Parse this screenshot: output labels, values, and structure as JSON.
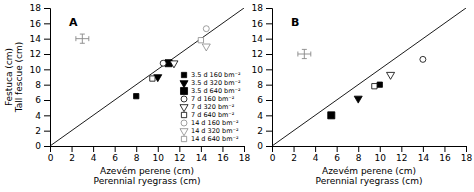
{
  "chart_data": [
    {
      "type": "scatter",
      "title": "A",
      "xlabel": "Azevém perene (cm)\nPerennial ryegrass (cm)",
      "ylabel": "Festuca (cm)\nTall fescue (cm)",
      "xlim": [
        0,
        18
      ],
      "ylim": [
        0,
        18
      ],
      "xticks": [
        0,
        2,
        4,
        6,
        8,
        10,
        12,
        14,
        16,
        18
      ],
      "yticks": [
        0,
        2,
        4,
        6,
        8,
        10,
        12,
        14,
        16,
        18
      ],
      "legend": "lower right",
      "identity_line": {
        "x": [
          0,
          18
        ],
        "values": [
          0,
          18
        ],
        "color": "black"
      },
      "series": [
        {
          "name": "3.5 d 160 bm⁻²",
          "x": [
            8.0
          ],
          "values": [
            6.5
          ],
          "marker": "square",
          "color": "black"
        },
        {
          "name": "3.5 d 320 bm⁻²",
          "x": [
            10.0
          ],
          "values": [
            9.0
          ],
          "marker": "triangle-down",
          "color": "black"
        },
        {
          "name": "3.5 d 640 bm⁻²",
          "x": [
            11.0
          ],
          "values": [
            10.8
          ],
          "marker": "large-square",
          "color": "black"
        },
        {
          "name": "7 d 160 bm⁻²",
          "x": [
            10.5
          ],
          "values": [
            10.8
          ],
          "marker": "open-circle",
          "color": "black"
        },
        {
          "name": "7 d 320 bm⁻²",
          "x": [
            11.5
          ],
          "values": [
            10.8
          ],
          "marker": "open-triangle-down",
          "color": "black"
        },
        {
          "name": "7 d 640 bm⁻²",
          "x": [
            9.5
          ],
          "values": [
            8.8
          ],
          "marker": "open-square",
          "color": "black"
        },
        {
          "name": "14 d 160 bm⁻²",
          "x": [
            14.5
          ],
          "values": [
            15.3
          ],
          "marker": "open-circle",
          "color": "#888888"
        },
        {
          "name": "14 d 320 bm⁻²",
          "x": [
            14.5
          ],
          "values": [
            13.0
          ],
          "marker": "open-triangle-down",
          "color": "#888888"
        },
        {
          "name": "14 d 640 bm⁻²",
          "x": [
            14.0
          ],
          "values": [
            13.8
          ],
          "marker": "open-square",
          "color": "#888888"
        }
      ],
      "error_bar": {
        "x": 3.0,
        "y": 14.0,
        "xerr": 0.6,
        "yerr": 0.6,
        "color": "#888888"
      }
    },
    {
      "type": "scatter",
      "title": "B",
      "xlabel": "Azevém perene (cm)\nPerennial ryegrass (cm)",
      "xlim": [
        0,
        18
      ],
      "ylim": [
        0,
        18
      ],
      "xticks": [
        0,
        2,
        4,
        6,
        8,
        10,
        12,
        14,
        16,
        18
      ],
      "yticks": [
        0,
        2,
        4,
        6,
        8,
        10,
        12,
        14,
        16,
        18
      ],
      "identity_line": {
        "x": [
          0,
          18
        ],
        "values": [
          0,
          18
        ],
        "color": "black"
      },
      "series": [
        {
          "x": [
            5.5
          ],
          "values": [
            4.0
          ],
          "marker": "large-square",
          "color": "black"
        },
        {
          "x": [
            8.0
          ],
          "values": [
            6.2
          ],
          "marker": "triangle-down",
          "color": "black"
        },
        {
          "x": [
            10.0
          ],
          "values": [
            8.0
          ],
          "marker": "square",
          "color": "black"
        },
        {
          "x": [
            9.5
          ],
          "values": [
            7.8
          ],
          "marker": "open-square",
          "color": "black"
        },
        {
          "x": [
            11.0
          ],
          "values": [
            9.3
          ],
          "marker": "open-triangle-down",
          "color": "black"
        },
        {
          "x": [
            14.0
          ],
          "values": [
            11.3
          ],
          "marker": "open-circle",
          "color": "black"
        }
      ],
      "error_bar": {
        "x": 3.0,
        "y": 12.0,
        "xerr": 0.6,
        "yerr": 0.6,
        "color": "#888888"
      }
    }
  ]
}
